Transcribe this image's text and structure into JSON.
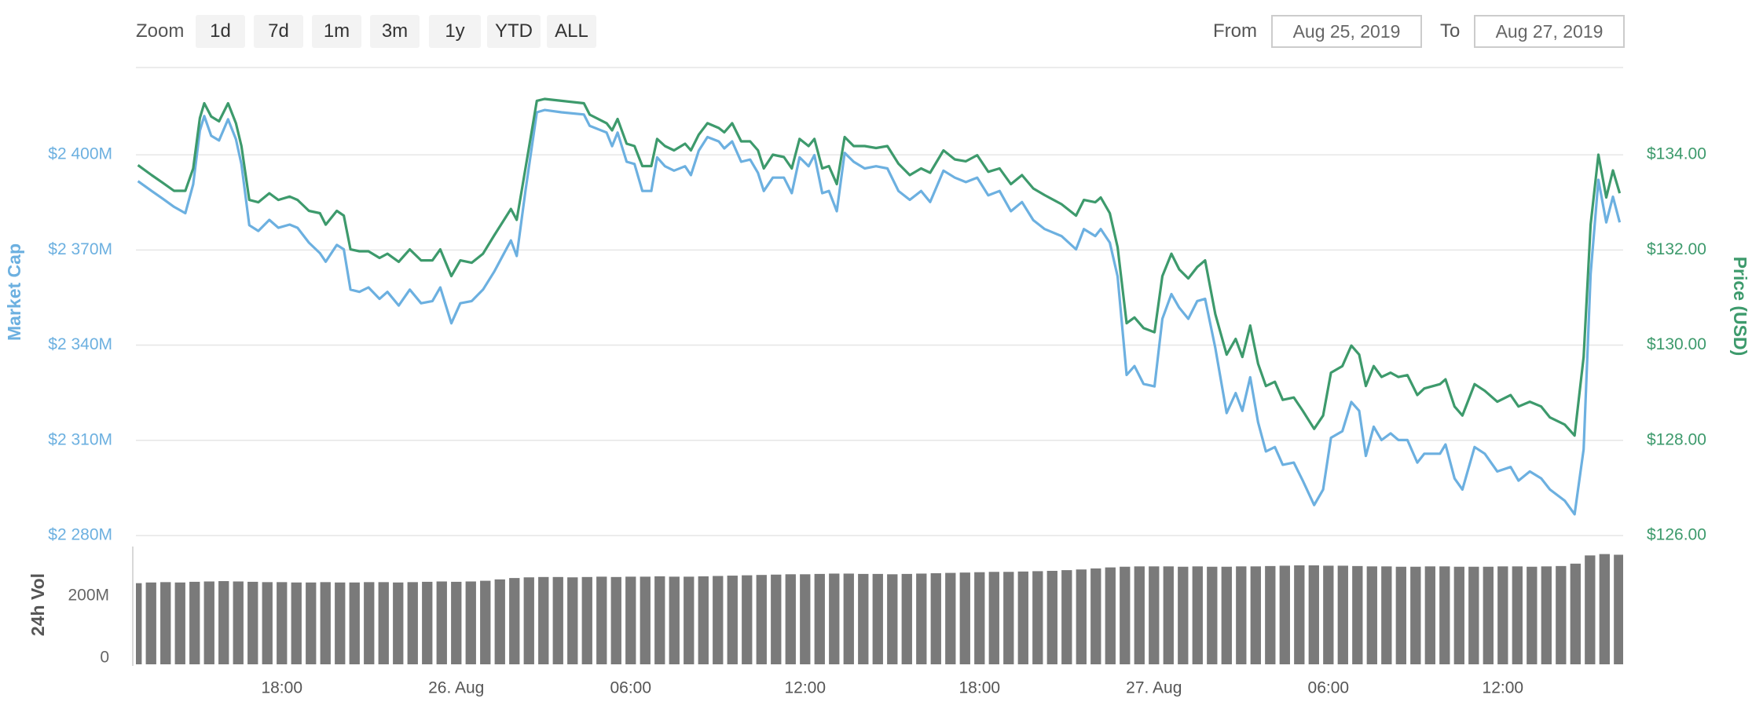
{
  "controls": {
    "zoom_label": "Zoom",
    "zoom_buttons": [
      "1d",
      "7d",
      "1m",
      "3m",
      "1y",
      "YTD",
      "ALL"
    ],
    "from_label": "From",
    "from_date": "Aug 25, 2019",
    "to_label": "To",
    "to_date": "Aug 27, 2019"
  },
  "chart_data": [
    {
      "type": "line",
      "x": [
        13.05,
        13.52,
        13.9,
        14.29,
        14.68,
        14.95,
        15.18,
        15.33,
        15.57,
        15.84,
        16.15,
        16.42,
        16.61,
        16.88,
        17.19,
        17.57,
        17.88,
        18.27,
        18.54,
        18.93,
        19.31,
        19.51,
        19.89,
        20.13,
        20.36,
        20.67,
        20.98,
        21.36,
        21.63,
        22.02,
        22.4,
        22.79,
        23.18,
        23.45,
        23.83,
        24.14,
        24.53,
        24.92,
        25.3,
        25.88,
        26.08,
        26.38,
        26.77,
        27.04,
        27.62,
        28.39,
        28.59,
        29.17,
        29.36,
        29.55,
        29.86,
        30.13,
        30.4,
        30.71,
        30.91,
        31.18,
        31.49,
        31.87,
        32.07,
        32.34,
        32.64,
        33.03,
        33.22,
        33.49,
        33.8,
        34.11,
        34.38,
        34.58,
        34.89,
        35.27,
        35.54,
        35.81,
        36.12,
        36.32,
        36.59,
        36.82,
        37.09,
        37.36,
        37.67,
        38.05,
        38.44,
        38.83,
        39.21,
        39.6,
        39.99,
        40.3,
        40.76,
        41.15,
        41.53,
        41.92,
        42.3,
        42.69,
        43.08,
        43.46,
        43.85,
        44.24,
        44.82,
        45.32,
        45.59,
        45.98,
        46.17,
        46.48,
        46.75,
        47.06,
        47.33,
        47.64,
        48.02,
        48.29,
        48.6,
        48.87,
        49.18,
        49.49,
        49.76,
        50.11,
        50.5,
        50.81,
        51.04,
        51.31,
        51.58,
        51.85,
        52.16,
        52.43,
        52.81,
        53.12,
        53.51,
        53.82,
        54.09,
        54.48,
        54.79,
        55.06,
        55.29,
        55.56,
        55.83,
        56.14,
        56.41,
        56.72,
        57.06,
        57.3,
        57.84,
        58.03,
        58.34,
        58.61,
        59.03,
        59.38,
        59.81,
        60.27,
        60.54,
        60.93,
        61.32,
        61.62,
        62.13,
        62.47,
        62.78,
        63.02,
        63.29,
        63.56,
        63.79,
        64.02
      ],
      "xlim": [
        12.98,
        64.14
      ],
      "ylim": [
        2280,
        2427.5
      ],
      "yticks": [
        {
          "value": 2280,
          "label": "$2 280M"
        },
        {
          "value": 2310,
          "label": "$2 310M"
        },
        {
          "value": 2340,
          "label": "$2 340M"
        },
        {
          "value": 2370,
          "label": "$2 370M"
        },
        {
          "value": 2400,
          "label": "$2 400M"
        }
      ],
      "y2lim": [
        126,
        135.83
      ],
      "y2ticks": [
        {
          "value": 126,
          "label": "$126.00"
        },
        {
          "value": 128,
          "label": "$128.00"
        },
        {
          "value": 130,
          "label": "$130.00"
        },
        {
          "value": 132,
          "label": "$132.00"
        },
        {
          "value": 134,
          "label": "$134.00"
        }
      ],
      "grid": true,
      "series": [
        {
          "name": "Market Cap",
          "color": "#6cb0e0",
          "values": [
            2391.7,
            2388.6,
            2386.2,
            2383.6,
            2381.6,
            2390.7,
            2407.6,
            2412.2,
            2406,
            2404.5,
            2411.2,
            2404.9,
            2397,
            2377.8,
            2376,
            2379.5,
            2377,
            2378,
            2377,
            2372.3,
            2369,
            2366.3,
            2371.6,
            2370.2,
            2357.5,
            2356.8,
            2358.2,
            2354.6,
            2356.8,
            2352.5,
            2357.5,
            2353.2,
            2353.9,
            2358.2,
            2346.9,
            2353.2,
            2353.9,
            2357.5,
            2363.1,
            2373,
            2368.1,
            2388.6,
            2413.4,
            2414.1,
            2413.4,
            2412.7,
            2409.1,
            2407,
            2402.7,
            2407,
            2397.8,
            2397.1,
            2388.6,
            2388.6,
            2399.2,
            2396.4,
            2395,
            2396.4,
            2393.6,
            2401.3,
            2405.6,
            2404.2,
            2402,
            2404.2,
            2397.8,
            2398.5,
            2394.3,
            2388.6,
            2392.8,
            2392.8,
            2387.9,
            2399.2,
            2396.4,
            2399.9,
            2387.9,
            2388.6,
            2382.2,
            2400.6,
            2397.8,
            2395.7,
            2396.4,
            2395.7,
            2388.6,
            2385.8,
            2388.6,
            2385.1,
            2395,
            2392.8,
            2391.4,
            2392.8,
            2387.2,
            2388.6,
            2382.2,
            2385.1,
            2379.4,
            2376.6,
            2374.4,
            2370.2,
            2376.6,
            2374.4,
            2376.6,
            2372.3,
            2361.7,
            2330.6,
            2333.4,
            2327.8,
            2327,
            2348.3,
            2356.1,
            2351.8,
            2348.3,
            2353.9,
            2354.6,
            2339.1,
            2318.6,
            2324.9,
            2319.3,
            2329.9,
            2315.7,
            2306.5,
            2307.9,
            2302.3,
            2303,
            2297.3,
            2289.6,
            2294.5,
            2310.8,
            2312.9,
            2322.1,
            2319.3,
            2305.1,
            2314.3,
            2310.1,
            2312.2,
            2310.1,
            2310.1,
            2303,
            2305.8,
            2305.8,
            2308.7,
            2298,
            2294.5,
            2307.9,
            2305.8,
            2300.2,
            2301.6,
            2297.3,
            2300.2,
            2298,
            2294.5,
            2291,
            2286.7,
            2307.2,
            2362.4,
            2392.1,
            2378.7,
            2386.8,
            2378.7
          ]
        },
        {
          "name": "Price (USD)",
          "color": "#3d9a6c",
          "axis": "y2",
          "values": [
            133.78,
            133.57,
            133.41,
            133.24,
            133.24,
            133.71,
            134.77,
            135.08,
            134.8,
            134.7,
            135.08,
            134.66,
            134.18,
            133.05,
            133.0,
            133.19,
            133.05,
            133.12,
            133.05,
            132.82,
            132.77,
            132.53,
            132.82,
            132.72,
            132.01,
            131.97,
            131.97,
            131.83,
            131.92,
            131.75,
            132.01,
            131.78,
            131.78,
            132.01,
            131.45,
            131.78,
            131.73,
            131.92,
            132.3,
            132.86,
            132.63,
            133.71,
            135.13,
            135.17,
            135.13,
            135.08,
            134.84,
            134.66,
            134.51,
            134.75,
            134.23,
            134.18,
            133.76,
            133.76,
            134.33,
            134.18,
            134.09,
            134.23,
            134.09,
            134.42,
            134.66,
            134.56,
            134.47,
            134.66,
            134.28,
            134.28,
            134.09,
            133.71,
            134.0,
            133.95,
            133.71,
            134.33,
            134.18,
            134.33,
            133.71,
            133.76,
            133.38,
            134.37,
            134.18,
            134.18,
            134.14,
            134.18,
            133.81,
            133.57,
            133.71,
            133.62,
            134.09,
            133.9,
            133.86,
            133.99,
            133.64,
            133.71,
            133.38,
            133.57,
            133.29,
            133.15,
            132.96,
            132.72,
            133.05,
            133.0,
            133.1,
            132.77,
            132.06,
            130.46,
            130.58,
            130.36,
            130.27,
            131.45,
            131.92,
            131.59,
            131.4,
            131.64,
            131.78,
            130.65,
            129.8,
            130.13,
            129.75,
            130.41,
            129.61,
            129.14,
            129.23,
            128.85,
            128.9,
            128.62,
            128.24,
            128.52,
            129.42,
            129.56,
            129.99,
            129.8,
            129.14,
            129.56,
            129.33,
            129.42,
            129.33,
            129.37,
            128.95,
            129.09,
            129.18,
            129.28,
            128.71,
            128.52,
            129.18,
            129.04,
            128.81,
            128.95,
            128.71,
            128.81,
            128.71,
            128.48,
            128.33,
            128.1,
            129.75,
            132.53,
            134.0,
            133.1,
            133.67,
            133.19
          ]
        }
      ]
    },
    {
      "type": "bar",
      "ylabel": "24h Vol",
      "color": "#7a7a7a",
      "x": [
        13,
        13.5,
        14,
        14.5,
        15,
        15.5,
        16,
        16.5,
        17,
        17.5,
        18,
        18.5,
        19,
        19.5,
        20,
        20.5,
        21,
        21.5,
        22,
        22.5,
        23,
        23.5,
        24,
        24.5,
        25,
        25.5,
        26,
        26.5,
        27,
        27.5,
        28,
        28.5,
        29,
        29.5,
        30,
        30.5,
        31,
        31.5,
        32,
        32.5,
        33,
        33.5,
        34,
        34.5,
        35,
        35.5,
        36,
        36.5,
        37,
        37.5,
        38,
        38.5,
        39,
        39.5,
        40,
        40.5,
        41,
        41.5,
        42,
        42.5,
        43,
        43.5,
        44,
        44.5,
        45,
        45.5,
        46,
        46.5,
        47,
        47.5,
        48,
        48.5,
        49,
        49.5,
        50,
        50.5,
        51,
        51.5,
        52,
        52.5,
        53,
        53.5,
        54,
        54.5,
        55,
        55.5,
        56,
        56.5,
        57,
        57.5,
        58,
        58.5,
        59,
        59.5,
        60,
        60.5,
        61,
        61.5,
        62,
        62.5,
        63,
        63.5,
        64
      ],
      "values": [
        237,
        239,
        240,
        239,
        241,
        242,
        243,
        242,
        241,
        240,
        240,
        239,
        239,
        240,
        239,
        239,
        240,
        240,
        239,
        240,
        241,
        242,
        241,
        242,
        244,
        248,
        252,
        254,
        255,
        255,
        254,
        255,
        256,
        255,
        256,
        256,
        257,
        256,
        256,
        257,
        258,
        259,
        260,
        261,
        262,
        263,
        263,
        264,
        265,
        265,
        264,
        264,
        263,
        264,
        265,
        266,
        267,
        268,
        269,
        270,
        270,
        271,
        272,
        273,
        275,
        277,
        280,
        283,
        285,
        286,
        286,
        286,
        285,
        286,
        285,
        285,
        286,
        286,
        287,
        288,
        289,
        289,
        288,
        288,
        287,
        286,
        286,
        285,
        285,
        286,
        286,
        285,
        285,
        285,
        286,
        286,
        285,
        286,
        287,
        294,
        318,
        322,
        320
      ],
      "xlim": [
        12.98,
        64.14
      ],
      "ylim": [
        0,
        344
      ],
      "yticks": [
        0,
        {
          "value": 200,
          "label": "200M"
        }
      ],
      "xticks": [
        {
          "value": 18,
          "label": "18:00"
        },
        {
          "value": 24,
          "label": "26. Aug"
        },
        {
          "value": 30,
          "label": "06:00"
        },
        {
          "value": 36,
          "label": "12:00"
        },
        {
          "value": 42,
          "label": "18:00"
        },
        {
          "value": 48,
          "label": "27. Aug"
        },
        {
          "value": 54,
          "label": "06:00"
        },
        {
          "value": 60,
          "label": "12:00"
        }
      ]
    }
  ]
}
